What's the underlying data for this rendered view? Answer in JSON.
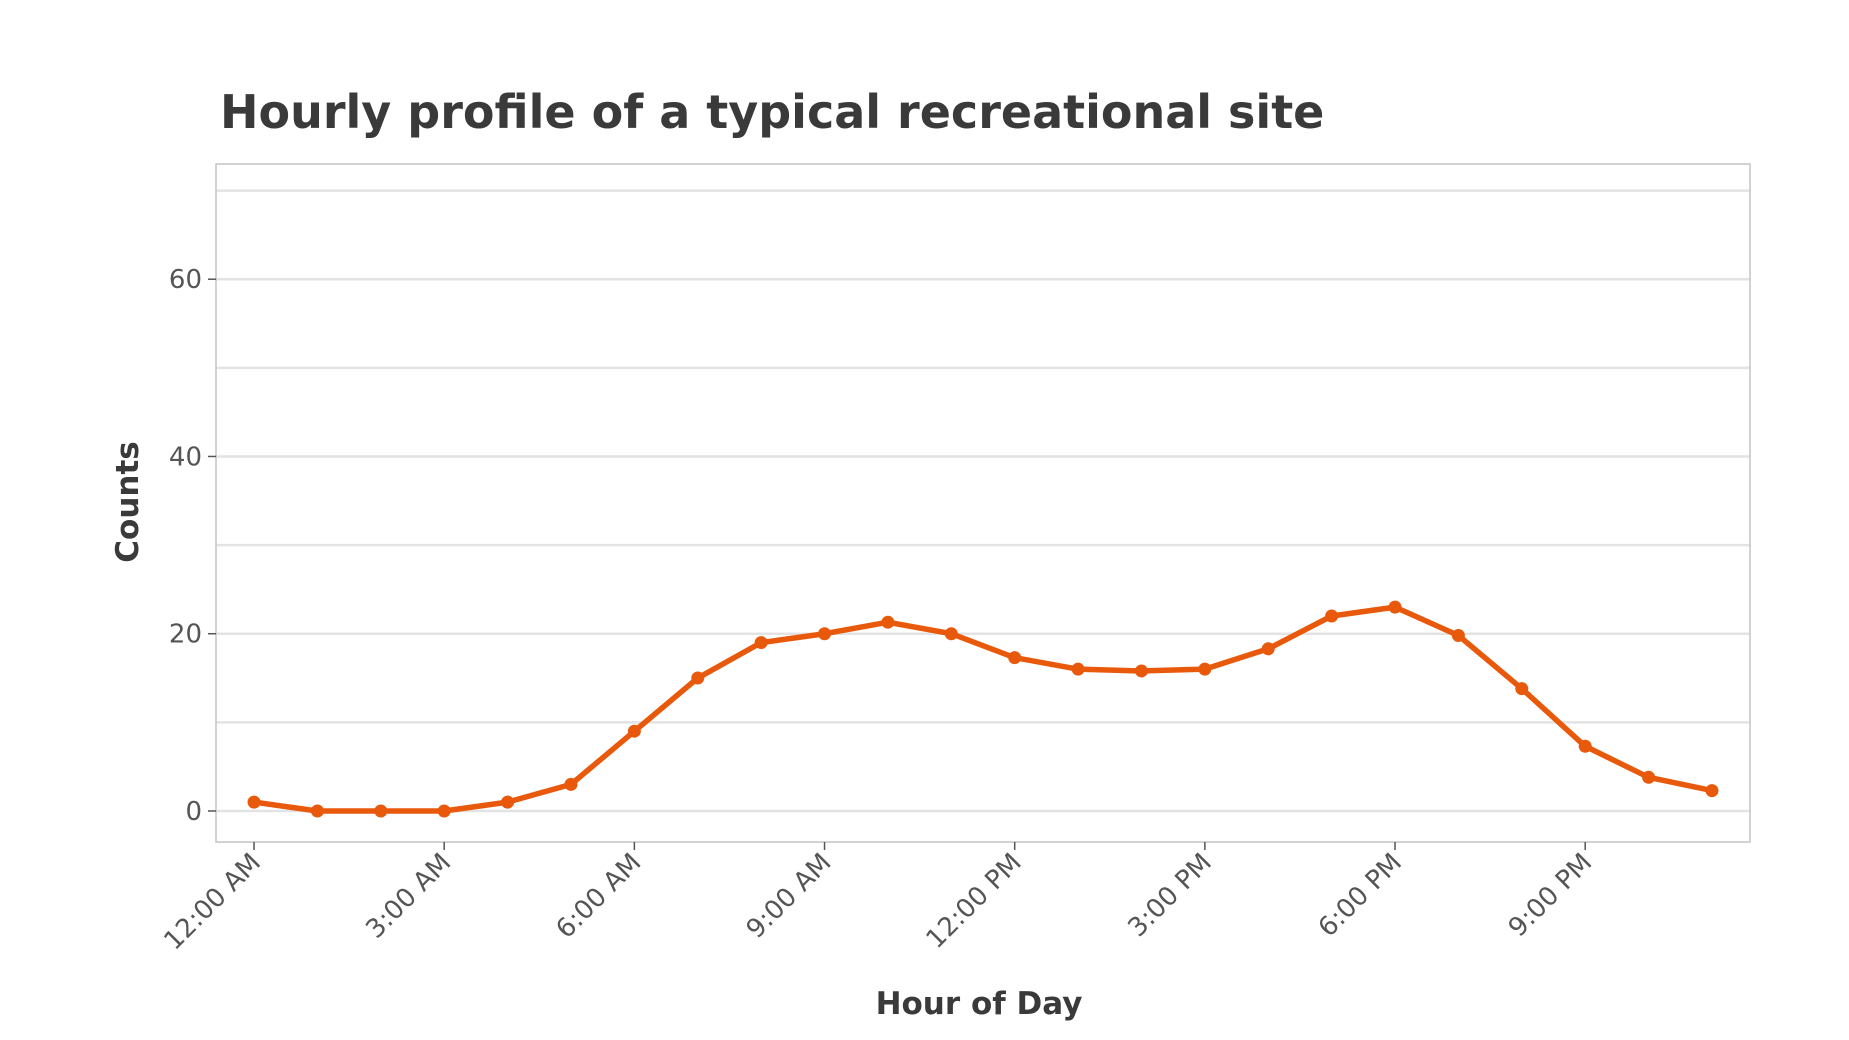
{
  "chart_data": {
    "type": "line",
    "title": "Hourly profile of a typical recreational site",
    "xlabel": "Hour of Day",
    "ylabel": "Counts",
    "x": [
      0,
      1,
      2,
      3,
      4,
      5,
      6,
      7,
      8,
      9,
      10,
      11,
      12,
      13,
      14,
      15,
      16,
      17,
      18,
      19,
      20,
      21,
      22,
      23
    ],
    "xticks": [
      {
        "x": 0,
        "label": "12:00 AM"
      },
      {
        "x": 3,
        "label": "3:00 AM"
      },
      {
        "x": 6,
        "label": "6:00 AM"
      },
      {
        "x": 9,
        "label": "9:00 AM"
      },
      {
        "x": 12,
        "label": "12:00 PM"
      },
      {
        "x": 15,
        "label": "3:00 PM"
      },
      {
        "x": 18,
        "label": "6:00 PM"
      },
      {
        "x": 21,
        "label": "9:00 PM"
      }
    ],
    "yticks": [
      0,
      20,
      40,
      60
    ],
    "ylim": [
      -3.5,
      73
    ],
    "xlim": [
      -0.6,
      23.6
    ],
    "grid": true,
    "gridlines_y": [
      0,
      10,
      20,
      30,
      40,
      50,
      60,
      70
    ],
    "series": [
      {
        "color": "#e8590c",
        "values": [
          1,
          0,
          0,
          0,
          1,
          3,
          9,
          15,
          19,
          20,
          21.3,
          20,
          17.3,
          16,
          15.8,
          16,
          18.3,
          22,
          23,
          19.8,
          13.8,
          7.3,
          3.8,
          2.3
        ]
      }
    ]
  }
}
